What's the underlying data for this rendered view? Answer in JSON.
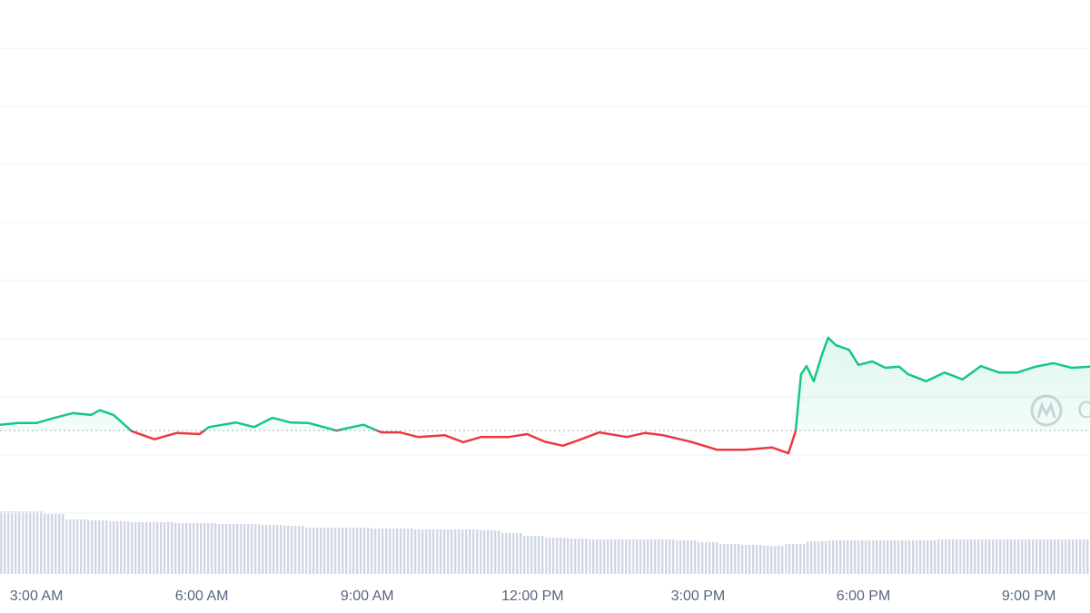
{
  "chart_data": [
    {
      "type": "line",
      "x": [
        2.34,
        2.67,
        3.0,
        3.33,
        3.66,
        3.99,
        4.15,
        4.4,
        4.73,
        5.14,
        5.55,
        5.96,
        6.13,
        6.62,
        6.95,
        7.28,
        7.61,
        7.94,
        8.44,
        8.93,
        9.26,
        9.59,
        9.92,
        10.41,
        10.74,
        11.07,
        11.57,
        11.9,
        12.22,
        12.55,
        12.88,
        13.21,
        13.71,
        14.04,
        14.37,
        14.86,
        15.35,
        15.85,
        16.34,
        16.64,
        16.77,
        16.87,
        16.97,
        17.1,
        17.25,
        17.36,
        17.5,
        17.74,
        17.91,
        18.16,
        18.4,
        18.65,
        18.81,
        19.14,
        19.47,
        19.8,
        20.13,
        20.46,
        20.79,
        21.12,
        21.45,
        21.78,
        22.11
      ],
      "values": [
        1.52,
        1.55,
        1.55,
        1.64,
        1.72,
        1.69,
        1.77,
        1.69,
        1.41,
        1.27,
        1.38,
        1.36,
        1.48,
        1.56,
        1.48,
        1.64,
        1.56,
        1.55,
        1.42,
        1.52,
        1.39,
        1.39,
        1.31,
        1.34,
        1.22,
        1.31,
        1.31,
        1.36,
        1.23,
        1.16,
        1.27,
        1.39,
        1.31,
        1.38,
        1.34,
        1.23,
        1.09,
        1.09,
        1.13,
        1.03,
        1.41,
        2.39,
        2.53,
        2.27,
        2.73,
        3.02,
        2.89,
        2.81,
        2.55,
        2.61,
        2.5,
        2.52,
        2.39,
        2.27,
        2.42,
        2.3,
        2.53,
        2.42,
        2.42,
        2.52,
        2.58,
        2.5,
        2.52
      ],
      "baseline": 1.42,
      "up_color": "#16c784",
      "down_color": "#ea3943",
      "xlim": [
        2.34,
        22.11
      ],
      "xticks": [
        {
          "value": 3,
          "label": "3:00 AM"
        },
        {
          "value": 6,
          "label": "6:00 AM"
        },
        {
          "value": 9,
          "label": "9:00 AM"
        },
        {
          "value": 12,
          "label": "12:00 PM"
        },
        {
          "value": 15,
          "label": "3:00 PM"
        },
        {
          "value": 18,
          "label": "6:00 PM"
        },
        {
          "value": 21,
          "label": "9:00 PM"
        }
      ],
      "ylim": [
        0,
        8.83
      ],
      "yticks": [
        0,
        1,
        2,
        3,
        4,
        5,
        6,
        7,
        8
      ],
      "grid": true,
      "watermark": "CoinMarketCap"
    },
    {
      "type": "bar",
      "x": [
        2.54,
        2.94,
        3.33,
        3.73,
        4.12,
        4.52,
        4.91,
        5.31,
        5.7,
        6.1,
        6.49,
        6.89,
        7.28,
        7.68,
        8.08,
        8.47,
        8.87,
        9.26,
        9.66,
        10.05,
        10.45,
        10.84,
        11.24,
        11.63,
        12.03,
        12.43,
        12.82,
        13.22,
        13.61,
        14.01,
        14.4,
        14.8,
        15.19,
        15.59,
        15.98,
        16.38,
        16.78,
        17.17,
        17.57,
        17.96,
        18.36,
        18.75,
        19.15,
        19.54,
        19.94,
        20.33,
        20.73,
        21.12,
        21.52,
        21.91
      ],
      "values": [
        69,
        69,
        66,
        60,
        59,
        58,
        57,
        57,
        56,
        56,
        55,
        55,
        54,
        53,
        51,
        51,
        51,
        50,
        50,
        49,
        49,
        49,
        48,
        45,
        42,
        40,
        39,
        38,
        38,
        38,
        38,
        37,
        35,
        33,
        32,
        31,
        33,
        36,
        37,
        37,
        37,
        37,
        37,
        38,
        38,
        38,
        38,
        38,
        38,
        38
      ],
      "bar_width": 0.3954,
      "color": "#cfd6e4",
      "ylim": [
        0,
        80
      ]
    }
  ]
}
